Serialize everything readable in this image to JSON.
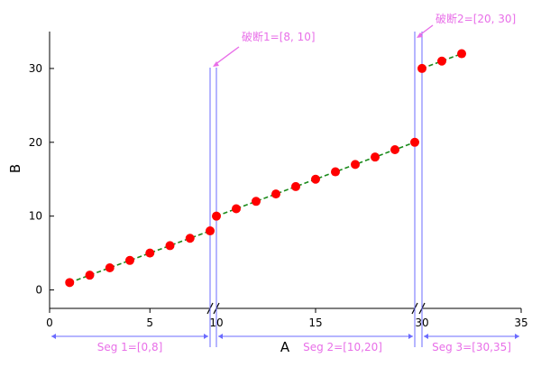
{
  "colors": {
    "axis": "#000000",
    "marker": "#ff0000",
    "line": "#1a8a1a",
    "break_line": "#6b6bff",
    "annotation": "#e86fe8",
    "segment": "#6b6bff"
  },
  "annotations": [
    {
      "text": "破断1=[8, 10]",
      "x": 9.5,
      "y": 30
    },
    {
      "text": "破断2=[20, 30]",
      "x": 30.2,
      "y": 30
    }
  ],
  "chart_data": {
    "type": "line",
    "xlabel": "A",
    "ylabel": "B",
    "x_ticks": [
      0,
      5,
      10,
      15,
      30,
      35
    ],
    "y_ticks": [
      0,
      10,
      20,
      30
    ],
    "ylim": [
      -2.5,
      35
    ],
    "breaks": [
      [
        8,
        10
      ],
      [
        20,
        30
      ]
    ],
    "segments": [
      {
        "label": "Seg 1=[0,8]",
        "range": [
          0,
          8
        ]
      },
      {
        "label": "Seg 2=[10,20]",
        "range": [
          10,
          20
        ]
      },
      {
        "label": "Seg 3=[30,35]",
        "range": [
          30,
          35
        ]
      }
    ],
    "series": [
      {
        "marker": "circle",
        "line_style": "dashed",
        "x": [
          1,
          2,
          3,
          4,
          5,
          6,
          7,
          8,
          10,
          11,
          12,
          13,
          14,
          15,
          16,
          17,
          18,
          19,
          20,
          30,
          31,
          32
        ],
        "y": [
          1,
          2,
          3,
          4,
          5,
          6,
          7,
          8,
          10,
          11,
          12,
          13,
          14,
          15,
          16,
          17,
          18,
          19,
          20,
          30,
          31,
          32
        ]
      }
    ]
  }
}
